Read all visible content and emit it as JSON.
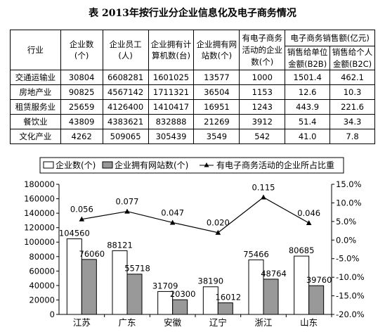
{
  "title": "表 2013年按行业分企业信息化及电子商务情况",
  "table": {
    "header": {
      "industry": "行业",
      "enterprises": [
        "企业数",
        "(个)"
      ],
      "employees": [
        "企业员工",
        "(人)"
      ],
      "computers": [
        "企业拥有计",
        "算机数(台)"
      ],
      "websites": [
        "企业拥有网",
        "站数(个)"
      ],
      "ecom_count": [
        "有电子商务",
        "活动的企业",
        "数(个)"
      ],
      "sales_group": "电子商务销售额(亿元)",
      "b2b": [
        "销售给单位",
        "金额(B2B)"
      ],
      "b2c": [
        "销售给个人",
        "金额(B2C)"
      ]
    },
    "rows": [
      {
        "industry": "交通运输业",
        "enterprises": "30804",
        "employees": "6608281",
        "computers": "1601025",
        "websites": "13577",
        "ecom": "1000",
        "b2b": "1501.4",
        "b2c": "462.1"
      },
      {
        "industry": "房地产业",
        "enterprises": "90825",
        "employees": "4567142",
        "computers": "1711321",
        "websites": "36504",
        "ecom": "1153",
        "b2b": "12.6",
        "b2c": "10.3"
      },
      {
        "industry": "租赁服务业",
        "enterprises": "25659",
        "employees": "4126400",
        "computers": "1410417",
        "websites": "16951",
        "ecom": "1243",
        "b2b": "443.9",
        "b2c": "221.6"
      },
      {
        "industry": "餐饮业",
        "enterprises": "43809",
        "employees": "4383621",
        "computers": "832888",
        "websites": "21269",
        "ecom": "3912",
        "b2b": "51.4",
        "b2c": "34.3"
      },
      {
        "industry": "文化产业",
        "enterprises": "4262",
        "employees": "509065",
        "computers": "305439",
        "websites": "3549",
        "ecom": "542",
        "b2b": "41.0",
        "b2c": "7.8"
      }
    ]
  },
  "legend": {
    "enterprises": "企业数(个)",
    "websites": "企业拥有网站数(个)",
    "ratio": "有电子商务活动的企业所占比重"
  },
  "colors": {
    "bar_enterprises": "#ffffff",
    "bar_websites": "#999999",
    "line": "#000000"
  },
  "chart_data": {
    "type": "bar",
    "categories": [
      "江苏",
      "广东",
      "安徽",
      "辽宁",
      "浙江",
      "山东"
    ],
    "series": [
      {
        "name": "企业数(个)",
        "values": [
          104560,
          88121,
          31709,
          38190,
          75466,
          80685
        ]
      },
      {
        "name": "企业拥有网站数(个)",
        "values": [
          76060,
          55718,
          20300,
          16012,
          48764,
          39760
        ]
      },
      {
        "name": "有电子商务活动的企业所占比重",
        "type": "line",
        "axis": "right",
        "values": [
          0.056,
          0.077,
          0.047,
          0.02,
          0.115,
          0.046
        ]
      }
    ],
    "ylim": [
      0,
      180000
    ],
    "yticks": [
      "0",
      "20000",
      "40000",
      "60000",
      "80000",
      "100000",
      "120000",
      "140000",
      "160000",
      "180000"
    ],
    "y2lim": [
      -0.2,
      0.15
    ],
    "y2ticks": [
      "-20.0%",
      "-15.0%",
      "-10.0%",
      "-5.0%",
      "0.0%",
      "5.0%",
      "10.0%",
      "15.0%"
    ],
    "line_labels": [
      "0.056",
      "0.077",
      "0.047",
      "0.020",
      "0.115",
      "0.046"
    ],
    "legend_position": "top"
  }
}
